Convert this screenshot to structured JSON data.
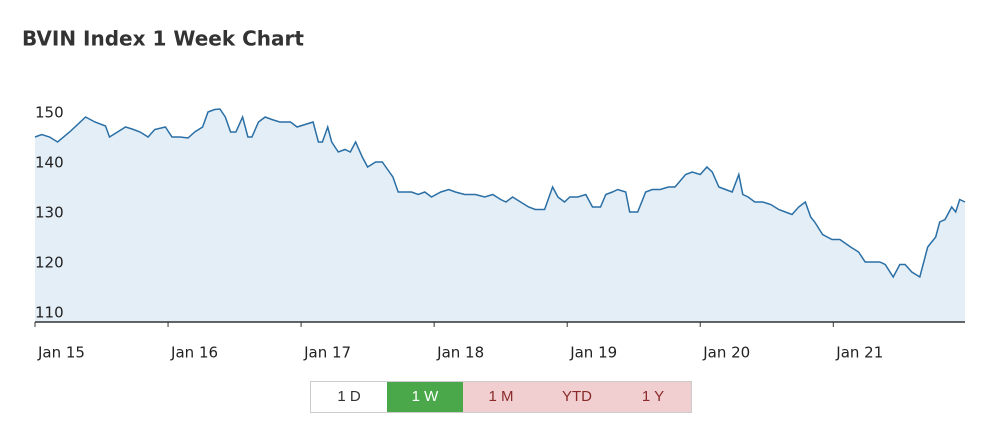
{
  "chart_data": {
    "type": "line",
    "title": "BVIN Index 1 Week Chart",
    "x": [
      0,
      0.05,
      0.11,
      0.17,
      0.26,
      0.38,
      0.45,
      0.53,
      0.56,
      0.62,
      0.68,
      0.73,
      0.79,
      0.85,
      0.9,
      0.98,
      1.03,
      1.09,
      1.15,
      1.2,
      1.26,
      1.3,
      1.35,
      1.39,
      1.43,
      1.47,
      1.51,
      1.56,
      1.6,
      1.63,
      1.68,
      1.73,
      1.78,
      1.84,
      1.92,
      1.97,
      2.03,
      2.09,
      2.13,
      2.16,
      2.2,
      2.23,
      2.28,
      2.33,
      2.37,
      2.41,
      2.46,
      2.5,
      2.56,
      2.61,
      2.65,
      2.69,
      2.73,
      2.78,
      2.83,
      2.88,
      2.93,
      2.98,
      3.05,
      3.11,
      3.16,
      3.23,
      3.31,
      3.38,
      3.44,
      3.5,
      3.54,
      3.59,
      3.65,
      3.71,
      3.76,
      3.83,
      3.89,
      3.93,
      3.98,
      4.02,
      4.08,
      4.14,
      4.19,
      4.25,
      4.29,
      4.34,
      4.38,
      4.44,
      4.47,
      4.53,
      4.59,
      4.64,
      4.7,
      4.76,
      4.81,
      4.89,
      4.94,
      5.0,
      5.05,
      5.09,
      5.14,
      5.19,
      5.24,
      5.29,
      5.32,
      5.36,
      5.41,
      5.47,
      5.53,
      5.59,
      5.64,
      5.69,
      5.74,
      5.79,
      5.83,
      5.86,
      5.92,
      5.99,
      6.05,
      6.13,
      6.19,
      6.24,
      6.29,
      6.35,
      6.39,
      6.45,
      6.5,
      6.54,
      6.59,
      6.65,
      6.71,
      6.77,
      6.8,
      6.84,
      6.89,
      6.92,
      6.95,
      6.99
    ],
    "values": [
      147,
      147.5,
      147,
      146,
      148,
      151,
      150,
      149.2,
      147,
      148,
      149,
      148.6,
      148,
      147,
      148.5,
      149,
      147,
      147,
      146.8,
      148,
      149,
      152,
      152.5,
      152.6,
      151,
      148,
      148,
      151,
      147,
      147,
      150,
      151,
      150.5,
      150,
      150,
      149,
      149.5,
      150,
      146,
      146,
      149,
      146,
      144,
      144.5,
      144,
      146,
      143,
      141,
      142,
      142,
      140.5,
      139,
      136,
      136,
      136,
      135.5,
      136,
      135,
      136,
      136.5,
      136,
      135.5,
      135.5,
      135,
      135.5,
      134.5,
      134,
      135,
      134,
      133,
      132.5,
      132.5,
      137,
      135,
      134,
      135,
      135,
      135.5,
      133,
      133,
      135.5,
      136,
      136.5,
      136,
      132,
      132,
      136,
      136.5,
      136.5,
      137,
      137,
      139.5,
      140,
      139.5,
      141,
      140,
      137,
      136.5,
      136,
      139.5,
      135.5,
      135,
      134,
      134,
      133.5,
      132.5,
      132,
      131.5,
      133,
      134,
      131,
      130,
      127.5,
      126.5,
      126.5,
      125,
      124,
      122,
      122,
      122,
      121.5,
      119,
      121.5,
      121.5,
      120,
      119,
      125,
      127,
      130,
      130.5,
      133,
      132,
      134.5,
      134
    ],
    "color": "#2a6fa5",
    "area_color": "#e4eef7",
    "xlim": [
      0,
      6.99
    ],
    "xticks": [
      {
        "value": 0,
        "label": "Jan 15"
      },
      {
        "value": 1,
        "label": "Jan 16"
      },
      {
        "value": 2,
        "label": "Jan 17"
      },
      {
        "value": 3,
        "label": "Jan 18"
      },
      {
        "value": 4,
        "label": "Jan 19"
      },
      {
        "value": 5,
        "label": "Jan 20"
      },
      {
        "value": 6,
        "label": "Jan 21"
      }
    ],
    "ylim": [
      110,
      154
    ],
    "yticks": [
      110,
      120,
      130,
      140,
      150
    ],
    "grid": false
  },
  "range_selector": {
    "buttons": [
      "1 D",
      "1 W",
      "1 M",
      "YTD",
      "1 Y"
    ]
  }
}
